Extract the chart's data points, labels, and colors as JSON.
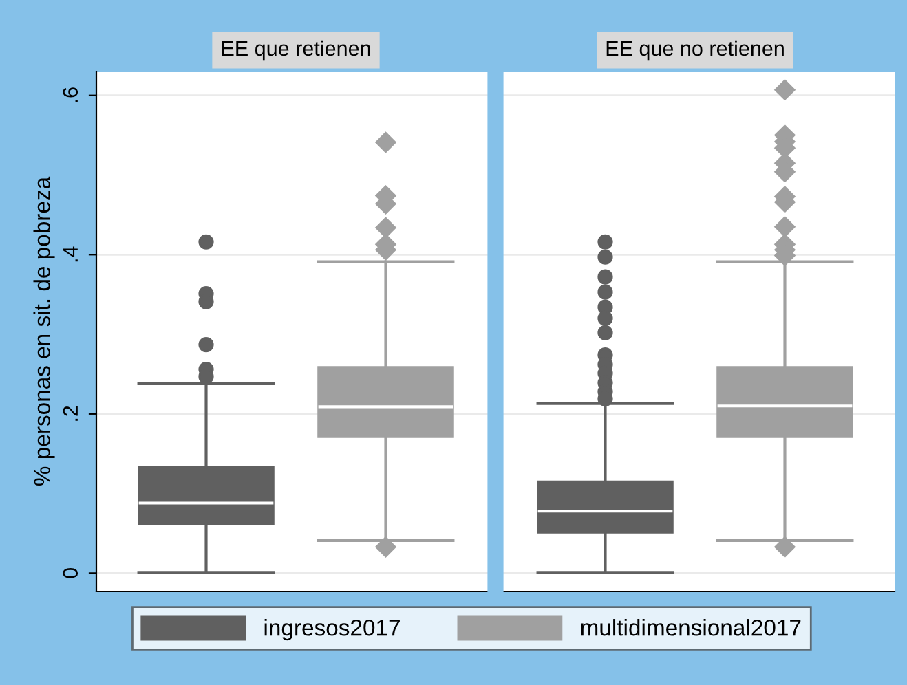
{
  "chart_data": {
    "type": "box",
    "ylabel": "% personas en sit. de pobreza",
    "categories": [
      "EE que retienen",
      "EE que no retienen"
    ],
    "ylim": [
      -0.023,
      0.63
    ],
    "yticks": [
      0,
      {
        "value": 0.2,
        "label": ".2"
      },
      {
        "value": 0.4,
        "label": ".4"
      },
      {
        "value": 0.6,
        "label": ".6"
      }
    ],
    "grid": "y",
    "legend": "bottom",
    "series": [
      {
        "name": "ingresos2017",
        "color": "#606060",
        "marker": "circle",
        "boxes": [
          {
            "low": 0.001,
            "q1": 0.062,
            "median": 0.088,
            "q3": 0.133,
            "high": 0.238,
            "outliers": [
              0.416,
              0.351,
              0.341,
              0.287,
              0.256,
              0.247
            ]
          },
          {
            "low": 0.001,
            "q1": 0.051,
            "median": 0.078,
            "q3": 0.115,
            "high": 0.213,
            "outliers": [
              0.416,
              0.397,
              0.372,
              0.353,
              0.334,
              0.32,
              0.302,
              0.274,
              0.262,
              0.251,
              0.239,
              0.228,
              0.219
            ]
          }
        ]
      },
      {
        "name": "multidimensional2017",
        "color": "#a0a0a0",
        "marker": "diamond",
        "boxes": [
          {
            "low": 0.041,
            "q1": 0.171,
            "median": 0.209,
            "q3": 0.259,
            "high": 0.391,
            "outliers": [
              0.541,
              0.474,
              0.464,
              0.434,
              0.413,
              0.406,
              0.033
            ]
          },
          {
            "low": 0.041,
            "q1": 0.171,
            "median": 0.21,
            "q3": 0.259,
            "high": 0.391,
            "outliers": [
              0.607,
              0.55,
              0.542,
              0.534,
              0.515,
              0.504,
              0.473,
              0.466,
              0.435,
              0.413,
              0.406,
              0.399,
              0.033
            ]
          }
        ]
      }
    ]
  }
}
